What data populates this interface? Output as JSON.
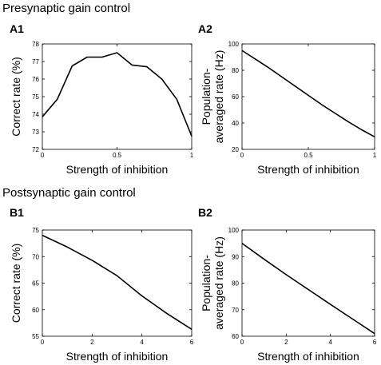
{
  "sections": {
    "top_title": "Presynaptic gain control",
    "bottom_title": "Postsynaptic gain control"
  },
  "chart_data": [
    {
      "id": "A1",
      "type": "line",
      "title": "",
      "xlabel": "Strength of inhibition",
      "ylabel": "Correct rate (%)",
      "xlim": [
        0,
        1
      ],
      "ylim": [
        72,
        78
      ],
      "xticks": [
        0,
        0.5,
        1
      ],
      "yticks": [
        72,
        73,
        74,
        75,
        76,
        77,
        78
      ],
      "x": [
        0,
        0.1,
        0.2,
        0.3,
        0.4,
        0.5,
        0.6,
        0.7,
        0.8,
        0.9,
        1.0
      ],
      "series": [
        {
          "values": [
            73.85,
            74.85,
            76.75,
            77.25,
            77.25,
            77.5,
            76.8,
            76.7,
            76.0,
            74.85,
            72.75
          ]
        }
      ]
    },
    {
      "id": "A2",
      "type": "line",
      "title": "",
      "xlabel": "Strength of inhibition",
      "ylabel": "Population-averaged rate (Hz)",
      "ylabel_lines": [
        "Population-",
        "averaged rate (Hz)"
      ],
      "xlim": [
        0,
        1
      ],
      "ylim": [
        20,
        100
      ],
      "xticks": [
        0,
        0.5,
        1
      ],
      "yticks": [
        20,
        40,
        60,
        80,
        100
      ],
      "x": [
        0,
        0.1,
        0.2,
        0.3,
        0.4,
        0.5,
        0.6,
        0.7,
        0.8,
        0.9,
        1.0
      ],
      "series": [
        {
          "values": [
            95,
            88.5,
            82,
            75,
            68,
            61,
            54,
            47.5,
            41,
            35,
            29.5
          ]
        }
      ]
    },
    {
      "id": "B1",
      "type": "line",
      "title": "",
      "xlabel": "Strength of inhibition",
      "ylabel": "Correct rate (%)",
      "xlim": [
        0,
        6
      ],
      "ylim": [
        55,
        75
      ],
      "xticks": [
        0,
        2,
        4,
        6
      ],
      "yticks": [
        55,
        60,
        65,
        70,
        75
      ],
      "x": [
        0,
        1,
        2,
        3,
        4,
        5,
        6
      ],
      "series": [
        {
          "values": [
            74,
            71.8,
            69.3,
            66.4,
            62.6,
            59.3,
            56.3
          ]
        }
      ]
    },
    {
      "id": "B2",
      "type": "line",
      "title": "",
      "xlabel": "Strength of inhibition",
      "ylabel": "Population-averaged rate (Hz)",
      "ylabel_lines": [
        "Population-",
        "averaged rate (Hz)"
      ],
      "xlim": [
        0,
        6
      ],
      "ylim": [
        60,
        100
      ],
      "xticks": [
        0,
        2,
        4,
        6
      ],
      "yticks": [
        60,
        70,
        80,
        90,
        100
      ],
      "x": [
        0,
        1,
        2,
        3,
        4,
        5,
        6
      ],
      "series": [
        {
          "values": [
            95,
            89,
            83.2,
            77.6,
            72,
            66.5,
            61
          ]
        }
      ]
    }
  ]
}
